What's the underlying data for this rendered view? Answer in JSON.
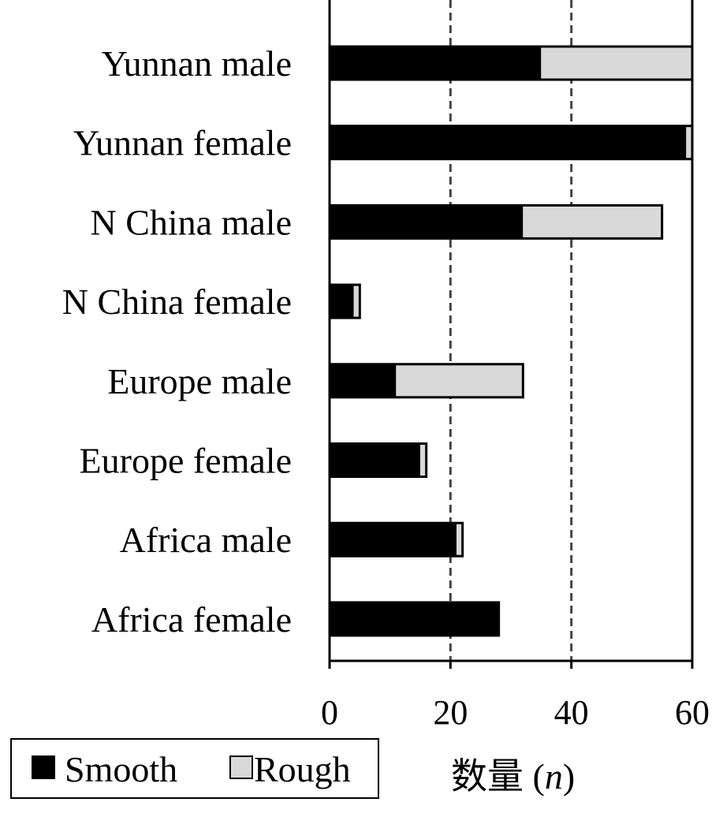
{
  "chart_data": {
    "type": "bar",
    "orientation": "horizontal",
    "stacked": true,
    "title": "",
    "xlabel": "数量 (n)",
    "xlabel_parts": {
      "prefix": "数量 (",
      "var": "n",
      "suffix": ")"
    },
    "ylabel": "",
    "xlim": [
      0,
      60
    ],
    "xticks": [
      0,
      20,
      40,
      60
    ],
    "xtick_labels": [
      "0",
      "20",
      "40",
      "60"
    ],
    "grid": "vertical dashed at 20 and 40",
    "legend_position": "bottom-left",
    "categories": [
      "Yunnan male",
      "Yunnan female",
      "N China male",
      "N China female",
      "Europe male",
      "Europe female",
      "Africa male",
      "Africa female"
    ],
    "series": [
      {
        "name": "Smooth",
        "color": "#000000",
        "values": [
          35,
          59,
          32,
          4,
          11,
          15,
          21,
          28
        ]
      },
      {
        "name": "Rough",
        "color": "#d9d9d9",
        "values": [
          25,
          1,
          23,
          1,
          21,
          1,
          1,
          0
        ]
      }
    ]
  }
}
